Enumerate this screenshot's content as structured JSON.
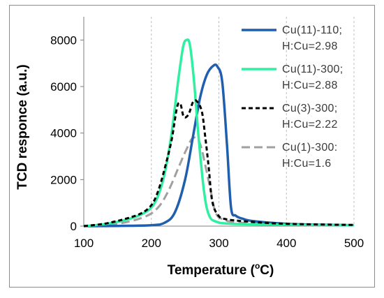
{
  "chart_data": {
    "type": "line",
    "title": "",
    "xlabel": "Temperature (°C)",
    "xlabel_main": "Temperature (",
    "xlabel_sup": "o",
    "xlabel_end": "C)",
    "ylabel": "TCD responce (a.u.)",
    "xlim": [
      100,
      500
    ],
    "ylim": [
      0,
      9000
    ],
    "x_ticks": [
      100,
      200,
      300,
      400,
      500
    ],
    "y_ticks": [
      0,
      2000,
      4000,
      6000,
      8000
    ],
    "x_tick_labels": [
      "100",
      "200",
      "300",
      "400",
      "500"
    ],
    "y_tick_labels": [
      "0",
      "2000",
      "4000",
      "6000",
      "8000"
    ],
    "grid": "vertical-dashed",
    "legend_position": "top-right",
    "series": [
      {
        "name_line1": "Cu(11)-110;",
        "name_line2": "H:Cu=2.98",
        "color": "#1f5fad",
        "style": "solid",
        "points": [
          [
            100,
            0
          ],
          [
            150,
            10
          ],
          [
            200,
            40
          ],
          [
            220,
            150
          ],
          [
            235,
            600
          ],
          [
            250,
            2000
          ],
          [
            262,
            3900
          ],
          [
            272,
            5500
          ],
          [
            282,
            6500
          ],
          [
            292,
            6900
          ],
          [
            298,
            6850
          ],
          [
            305,
            6200
          ],
          [
            312,
            3500
          ],
          [
            318,
            800
          ],
          [
            325,
            450
          ],
          [
            335,
            320
          ],
          [
            350,
            220
          ],
          [
            400,
            100
          ],
          [
            450,
            60
          ],
          [
            500,
            40
          ]
        ]
      },
      {
        "name_line1": "Cu(11)-300;",
        "name_line2": "H:Cu=2.88",
        "color": "#2ef0a0",
        "style": "solid",
        "points": [
          [
            100,
            0
          ],
          [
            130,
            80
          ],
          [
            160,
            250
          ],
          [
            185,
            500
          ],
          [
            200,
            800
          ],
          [
            210,
            1300
          ],
          [
            220,
            2300
          ],
          [
            230,
            4000
          ],
          [
            240,
            6300
          ],
          [
            247,
            7700
          ],
          [
            252,
            8000
          ],
          [
            257,
            7800
          ],
          [
            263,
            6300
          ],
          [
            270,
            3800
          ],
          [
            278,
            1500
          ],
          [
            285,
            500
          ],
          [
            295,
            200
          ],
          [
            320,
            100
          ],
          [
            400,
            60
          ],
          [
            500,
            40
          ]
        ]
      },
      {
        "name_line1": "Cu(3)-300;",
        "name_line2": "H:Cu=2.22",
        "color": "#000000",
        "style": "dashed",
        "points": [
          [
            100,
            0
          ],
          [
            130,
            100
          ],
          [
            160,
            300
          ],
          [
            185,
            550
          ],
          [
            200,
            900
          ],
          [
            210,
            1500
          ],
          [
            220,
            2500
          ],
          [
            230,
            3700
          ],
          [
            238,
            5100
          ],
          [
            243,
            5250
          ],
          [
            248,
            4700
          ],
          [
            255,
            4800
          ],
          [
            262,
            5350
          ],
          [
            268,
            5350
          ],
          [
            275,
            4900
          ],
          [
            280,
            3800
          ],
          [
            285,
            2500
          ],
          [
            290,
            1100
          ],
          [
            298,
            500
          ],
          [
            310,
            300
          ],
          [
            350,
            180
          ],
          [
            400,
            100
          ],
          [
            500,
            50
          ]
        ]
      },
      {
        "name_line1": "Cu(1)-300:",
        "name_line2": "H:Cu=1.6",
        "color": "#a0a0a0",
        "style": "dashed",
        "points": [
          [
            100,
            0
          ],
          [
            150,
            100
          ],
          [
            190,
            400
          ],
          [
            210,
            800
          ],
          [
            225,
            1500
          ],
          [
            240,
            2500
          ],
          [
            252,
            3300
          ],
          [
            262,
            3800
          ],
          [
            272,
            3550
          ],
          [
            280,
            2600
          ],
          [
            288,
            1500
          ],
          [
            295,
            600
          ],
          [
            305,
            300
          ],
          [
            330,
            150
          ],
          [
            400,
            80
          ],
          [
            500,
            40
          ]
        ]
      }
    ]
  }
}
